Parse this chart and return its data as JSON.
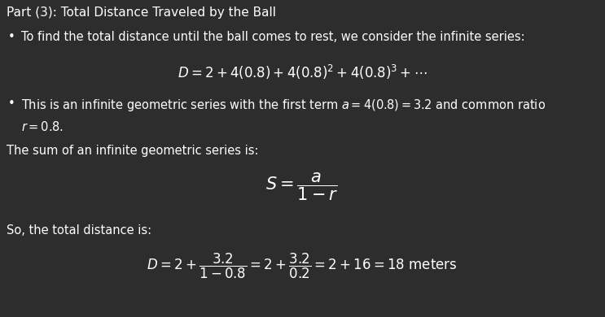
{
  "bg_color": "#2d2d2d",
  "text_color": "#ffffff",
  "title": "Part (3): Total Distance Traveled by the Ball",
  "bullet1": "To find the total distance until the ball comes to rest, we consider the infinite series:",
  "formula1": "$D = 2 + 4(0.8) + 4(0.8)^2 + 4(0.8)^3 + \\cdots$",
  "bullet2_part1": "This is an infinite geometric series with the first term $a = 4(0.8) = 3.2$ and common ratio",
  "bullet2_part2": "$r = 0.8.$",
  "text3": "The sum of an infinite geometric series is:",
  "formula2": "$S = \\dfrac{a}{1 - r}$",
  "text4": "So, the total distance is:",
  "formula3": "$D = 2 + \\dfrac{3.2}{1 - 0.8} = 2 + \\dfrac{3.2}{0.2} = 2 + 16 = 18 \\text{ meters}$",
  "fig_width": 7.43,
  "fig_height": 3.9,
  "dpi": 100
}
